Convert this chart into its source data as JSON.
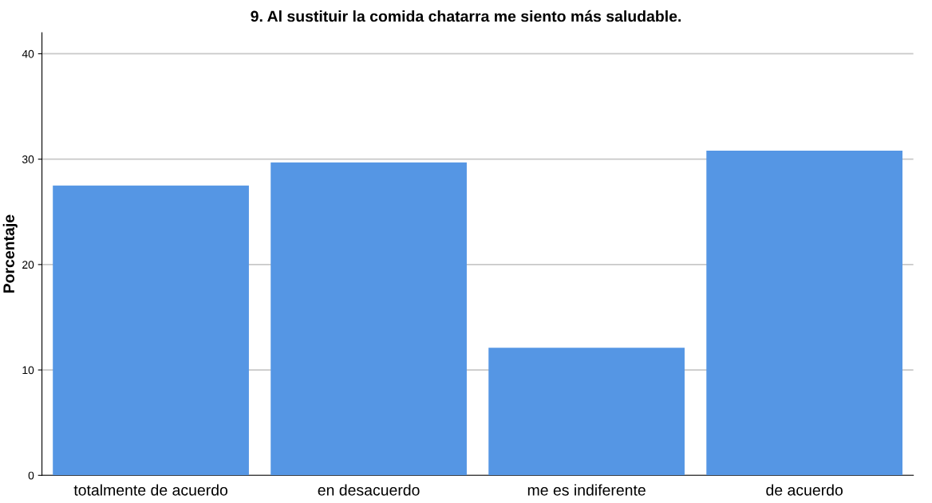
{
  "chart_data": {
    "type": "bar",
    "title": "9. Al sustituir la comida chatarra me siento más saludable.",
    "ylabel": "Porcentaje",
    "categories": [
      "totalmente de acuerdo",
      "en desacuerdo",
      "me es indiferente",
      "de acuerdo"
    ],
    "values": [
      27.5,
      29.7,
      12.1,
      30.8
    ],
    "color": "#5596e4",
    "ylim": [
      0,
      42
    ],
    "yticks": [
      0,
      10,
      20,
      30,
      40
    ],
    "grid": "y"
  }
}
